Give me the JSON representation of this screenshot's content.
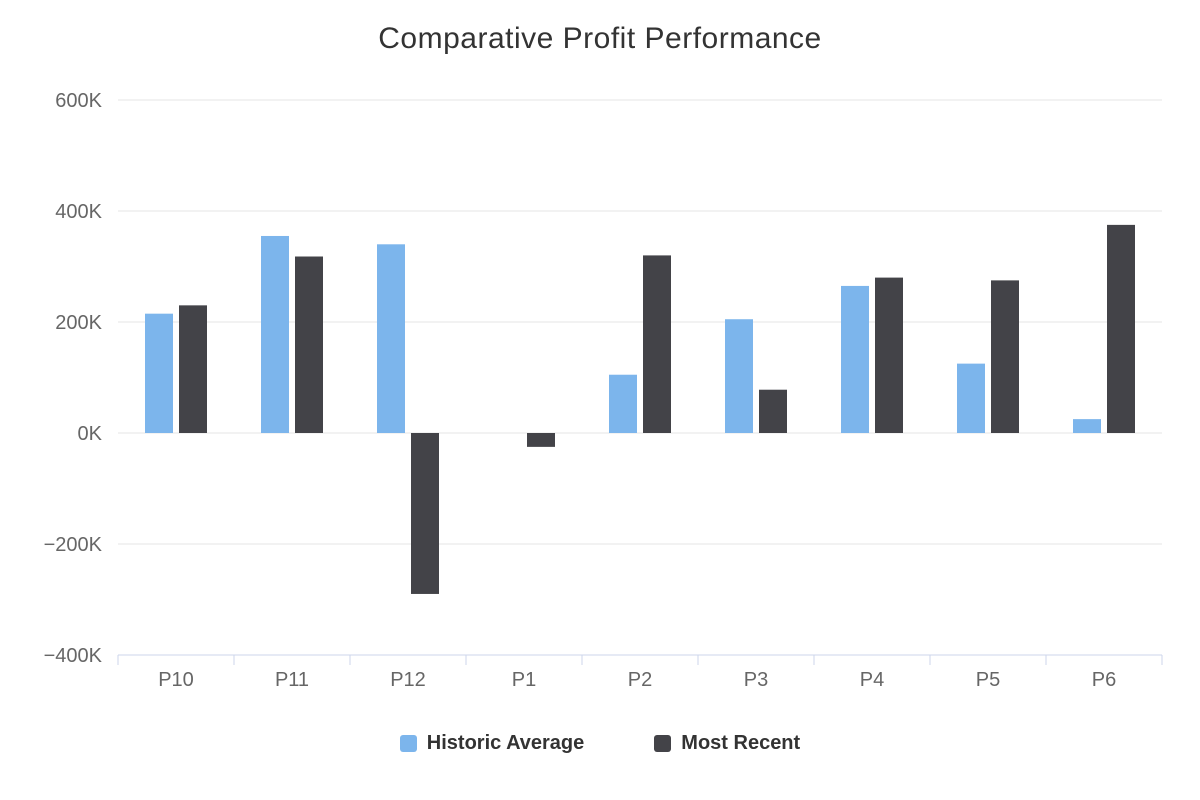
{
  "chart_data": {
    "type": "bar",
    "title": "Comparative Profit Performance",
    "categories": [
      "P10",
      "P11",
      "P12",
      "P1",
      "P2",
      "P3",
      "P4",
      "P5",
      "P6"
    ],
    "series": [
      {
        "name": "Historic Average",
        "color": "#7cb5ec",
        "values": [
          215000,
          355000,
          340000,
          0,
          105000,
          205000,
          265000,
          125000,
          25000
        ]
      },
      {
        "name": "Most Recent",
        "color": "#434348",
        "values": [
          230000,
          318000,
          -290000,
          -25000,
          320000,
          78000,
          280000,
          275000,
          375000
        ]
      }
    ],
    "xlabel": "",
    "ylabel": "",
    "ylim": [
      -400000,
      600000
    ],
    "ytick_step": 200000,
    "ytick_labels": [
      "−400K",
      "−200K",
      "0K",
      "200K",
      "400K",
      "600K"
    ],
    "ytick_suffix": "K",
    "grid": true,
    "legend_position": "bottom",
    "colors": {
      "grid": "#e6e6e6",
      "axis_line": "#ccd6eb",
      "axis_text": "#666666",
      "title_text": "#333333",
      "legend_text": "#333333",
      "background": "#ffffff"
    }
  }
}
